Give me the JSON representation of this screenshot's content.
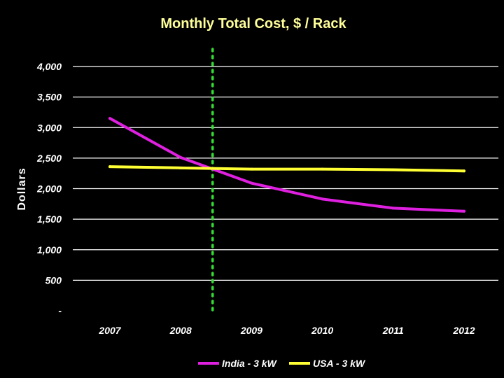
{
  "chart_data": {
    "type": "line",
    "title": "Monthly Total Cost, $ / Rack",
    "xlabel": "",
    "ylabel": "Dollars",
    "categories": [
      "2007",
      "2008",
      "2009",
      "2010",
      "2011",
      "2012"
    ],
    "y_tick_labels": [
      "-",
      "500",
      "1,000",
      "1,500",
      "2,000",
      "2,500",
      "3,000",
      "3,500",
      "4,000"
    ],
    "ylim": [
      0,
      4000
    ],
    "grid": true,
    "legend_position": "bottom",
    "series": [
      {
        "name": "India - 3 kW",
        "color": "#e020e0",
        "values": [
          3150,
          2510,
          2090,
          1830,
          1680,
          1630
        ]
      },
      {
        "name": "USA - 3 kW",
        "color": "#ffff33",
        "values": [
          2360,
          2340,
          2320,
          2320,
          2310,
          2290
        ]
      }
    ],
    "reference_line": {
      "x": 2008.45,
      "style": "dotted",
      "color": "#33dd33"
    }
  }
}
